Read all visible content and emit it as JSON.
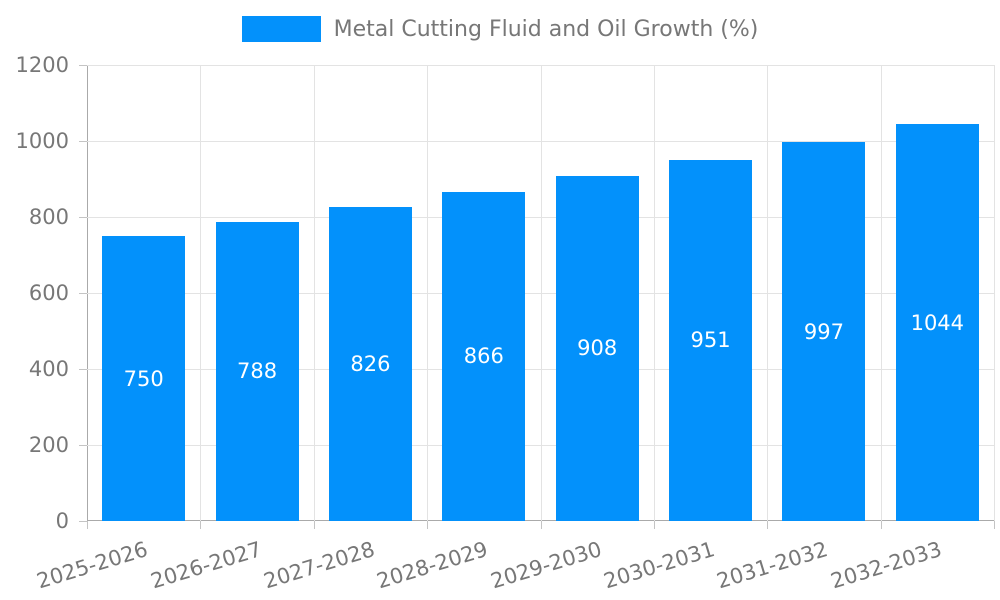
{
  "legend": {
    "label": "Metal Cutting Fluid and Oil Growth (%)"
  },
  "chart_data": {
    "type": "bar",
    "title": "Metal Cutting Fluid and Oil Growth (%)",
    "categories": [
      "2025-2026",
      "2026-2027",
      "2027-2028",
      "2028-2029",
      "2029-2030",
      "2030-2031",
      "2031-2032",
      "2032-2033"
    ],
    "series": [
      {
        "name": "Metal Cutting Fluid and Oil Growth (%)",
        "values": [
          750,
          788,
          826,
          866,
          908,
          951,
          997,
          1044
        ]
      }
    ],
    "values": [
      750,
      788,
      826,
      866,
      908,
      951,
      997,
      1044
    ],
    "xlabel": "",
    "ylabel": "",
    "ylim": [
      0,
      1200
    ],
    "yticks": [
      0,
      200,
      400,
      600,
      800,
      1000,
      1200
    ],
    "grid": true,
    "legend_position": "top",
    "value_labels": "inside-center"
  },
  "colors": {
    "bar": "#0391fb",
    "axis_line": "#aaaaaa",
    "grid_line": "#e3e3e3",
    "tick": "#c4c4c4",
    "text": "#777777",
    "value_label": "#ffffff",
    "background": "#ffffff"
  }
}
